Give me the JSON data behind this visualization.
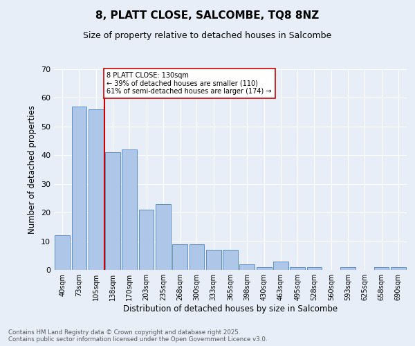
{
  "title": "8, PLATT CLOSE, SALCOMBE, TQ8 8NZ",
  "subtitle": "Size of property relative to detached houses in Salcombe",
  "xlabel": "Distribution of detached houses by size in Salcombe",
  "ylabel": "Number of detached properties",
  "categories": [
    "40sqm",
    "73sqm",
    "105sqm",
    "138sqm",
    "170sqm",
    "203sqm",
    "235sqm",
    "268sqm",
    "300sqm",
    "333sqm",
    "365sqm",
    "398sqm",
    "430sqm",
    "463sqm",
    "495sqm",
    "528sqm",
    "560sqm",
    "593sqm",
    "625sqm",
    "658sqm",
    "690sqm"
  ],
  "values": [
    12,
    57,
    56,
    41,
    42,
    21,
    23,
    9,
    9,
    7,
    7,
    2,
    1,
    3,
    1,
    1,
    0,
    1,
    0,
    1,
    1
  ],
  "bar_color": "#aec6e8",
  "bar_edge_color": "#5b8fc9",
  "background_color": "#e8eef7",
  "vline_color": "#cc0000",
  "vline_position": 2.5,
  "annotation_text": "8 PLATT CLOSE: 130sqm\n← 39% of detached houses are smaller (110)\n61% of semi-detached houses are larger (174) →",
  "annotation_box_color": "#ffffff",
  "annotation_box_edge": "#cc0000",
  "footer": "Contains HM Land Registry data © Crown copyright and database right 2025.\nContains public sector information licensed under the Open Government Licence v3.0.",
  "ylim": [
    0,
    70
  ],
  "yticks": [
    0,
    10,
    20,
    30,
    40,
    50,
    60,
    70
  ]
}
